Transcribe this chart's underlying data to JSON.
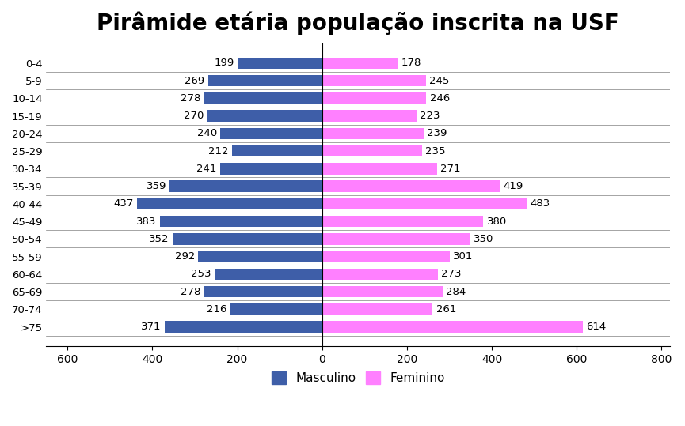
{
  "title": "Pirâmide etária população inscrita na USF",
  "age_groups": [
    "0-4",
    "5-9",
    "10-14",
    "15-19",
    "20-24",
    "25-29",
    "30-34",
    "35-39",
    "40-44",
    "45-49",
    "50-54",
    "55-59",
    "60-64",
    "65-69",
    "70-74",
    ">75"
  ],
  "male": [
    199,
    269,
    278,
    270,
    240,
    212,
    241,
    359,
    437,
    383,
    352,
    292,
    253,
    278,
    216,
    371
  ],
  "female": [
    178,
    245,
    246,
    223,
    239,
    235,
    271,
    419,
    483,
    380,
    350,
    301,
    273,
    284,
    261,
    614
  ],
  "male_color": "#3E5EA8",
  "female_color": "#FF80FF",
  "xlim_left": -650,
  "xlim_right": 820,
  "xticks": [
    -600,
    -400,
    -200,
    0,
    200,
    400,
    600,
    800
  ],
  "xtick_labels": [
    "600",
    "400",
    "200",
    "0",
    "200",
    "400",
    "600",
    "800"
  ],
  "legend_male": "Masculino",
  "legend_female": "Feminino",
  "background_color": "#ffffff",
  "title_fontsize": 20,
  "label_fontsize": 9.5,
  "tick_fontsize": 10
}
